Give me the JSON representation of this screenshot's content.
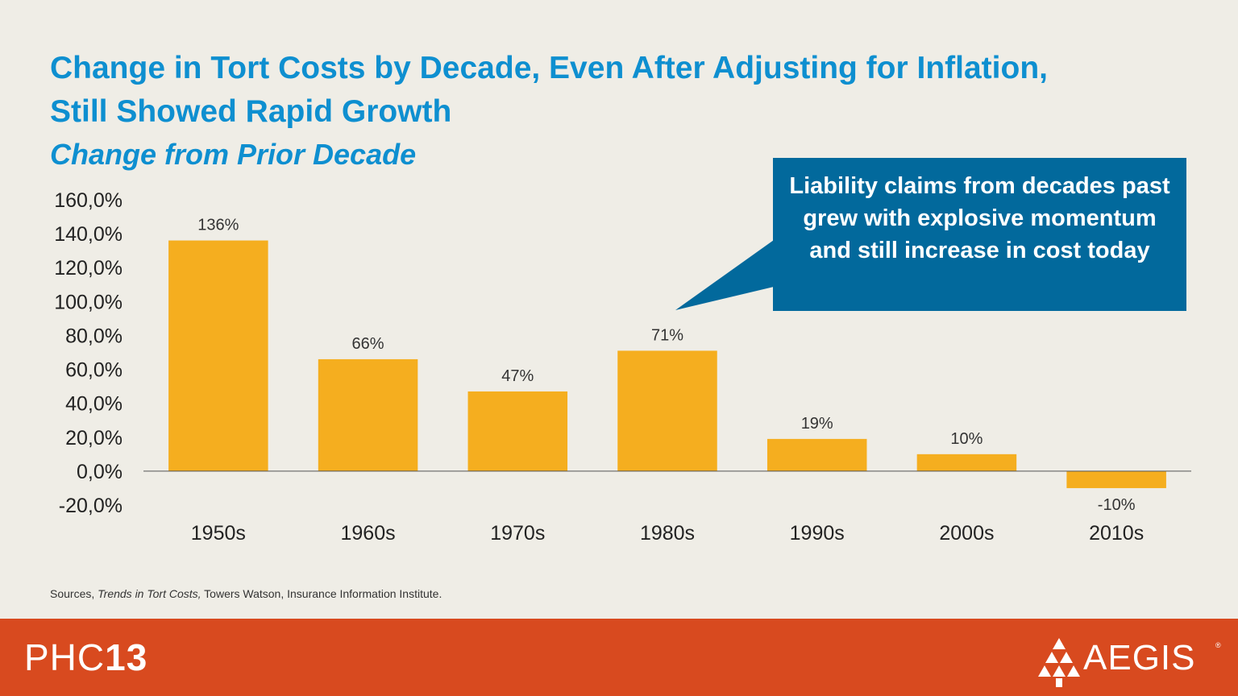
{
  "title": "Change in Tort Costs by Decade, Even After Adjusting for Inflation, Still Showed Rapid Growth",
  "subtitle": "Change from Prior Decade",
  "callout": "Liability claims from decades past grew with explosive momentum and still increase in cost today",
  "source": {
    "prefix": "Sources, ",
    "italic": "Trends in Tort Costs,",
    "suffix": " Towers Watson, Insurance Information Institute."
  },
  "footer": {
    "brand_left_light": "PHC",
    "brand_left_bold": "13",
    "brand_right": "AEGIS",
    "registered": "®"
  },
  "colors": {
    "bar": "#f5ae1f",
    "title": "#0e8fd0",
    "callout_bg": "#02699c",
    "footer_bg": "#d84a1f",
    "background": "#efede6"
  },
  "chart_data": {
    "type": "bar",
    "categories": [
      "1950s",
      "1960s",
      "1970s",
      "1980s",
      "1990s",
      "2000s",
      "2010s"
    ],
    "values": [
      136,
      66,
      47,
      71,
      19,
      10,
      -10
    ],
    "data_labels": [
      "136%",
      "66%",
      "47%",
      "71%",
      "19%",
      "10%",
      "-10%"
    ],
    "y_ticks": [
      160,
      140,
      120,
      100,
      80,
      60,
      40,
      20,
      0,
      -20
    ],
    "y_tick_labels": [
      "160,0%",
      "140,0%",
      "120,0%",
      "100,0%",
      "80,0%",
      "60,0%",
      "40,0%",
      "20,0%",
      "0,0%",
      "-20,0%"
    ],
    "ylim": [
      -20,
      160
    ],
    "grid": false,
    "legend": "none"
  }
}
